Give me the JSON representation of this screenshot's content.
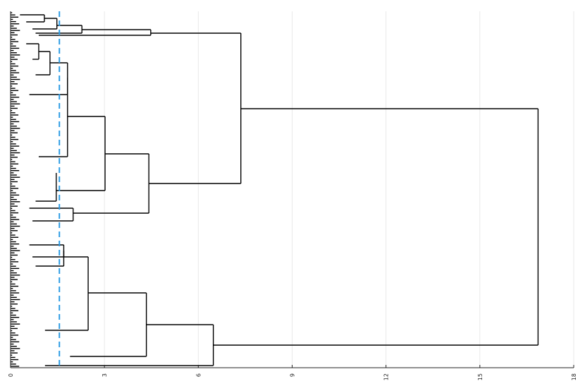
{
  "chart_data": {
    "type": "dendrogram",
    "orientation": "horizontal",
    "x_ticks": [
      "0",
      "3",
      "6",
      "9",
      "12",
      "15",
      "18"
    ],
    "xlim": [
      0,
      18
    ],
    "grid": "vertical",
    "cut_height": 1.56,
    "merges": [
      {
        "children_span": [
          0,
          4
        ],
        "height": 1.08
      },
      {
        "children_span": [
          4,
          8
        ],
        "height": 1.48
      },
      {
        "children_span": [
          8,
          12
        ],
        "height": 2.28
      },
      {
        "children_span": [
          12,
          16
        ],
        "height": 4.48
      },
      {
        "children_span": [
          40,
          48
        ],
        "height": 0.9
      },
      {
        "children_span": [
          48,
          56
        ],
        "height": 1.26
      },
      {
        "children_span": [
          56,
          68
        ],
        "height": 1.82
      },
      {
        "children_span": [
          68,
          80
        ],
        "height": 3.02
      },
      {
        "children_span": [
          80,
          92
        ],
        "height": 4.42
      },
      {
        "children_span": [
          92,
          100
        ],
        "height": 7.36
      },
      {
        "children_span": [
          100,
          110
        ],
        "height": 16.86
      },
      {
        "children_span": [
          110,
          120
        ],
        "height": 6.48
      },
      {
        "children_span": [
          120,
          130
        ],
        "height": 4.34
      },
      {
        "children_span": [
          130,
          140
        ],
        "height": 2.48
      },
      {
        "children_span": [
          140,
          150
        ],
        "height": 1.7
      },
      {
        "children_span": [
          150,
          160
        ],
        "height": 2.0
      }
    ]
  }
}
